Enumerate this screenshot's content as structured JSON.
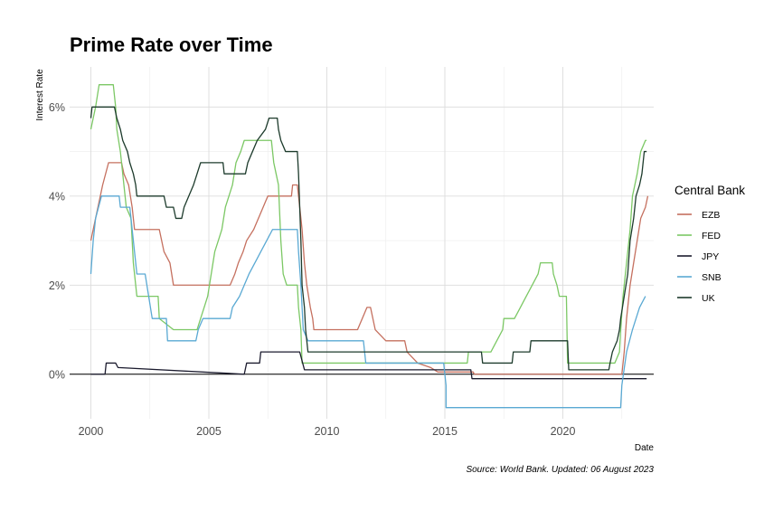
{
  "chart_data": {
    "type": "line",
    "title": "Prime Rate over Time",
    "xlabel": "Date",
    "ylabel": "Interest Rate",
    "caption": "Source: World Bank. Updated: 06 August 2023",
    "xlim": [
      1999.1,
      2023.85
    ],
    "ylim": [
      -1.0,
      6.9
    ],
    "x_ticks": [
      2000,
      2005,
      2010,
      2015,
      2020
    ],
    "x_tick_labels": [
      "2000",
      "2005",
      "2010",
      "2015",
      "2020"
    ],
    "y_ticks": [
      0,
      2,
      4,
      6
    ],
    "y_tick_labels": [
      "0%",
      "2%",
      "4%",
      "6%"
    ],
    "grid": true,
    "legend": {
      "title": "Central Bank",
      "placement": "right"
    },
    "series": [
      {
        "name": "EZB",
        "color": "#c5705f",
        "points": [
          [
            2000.0,
            3.0
          ],
          [
            2000.1,
            3.25
          ],
          [
            2000.2,
            3.5
          ],
          [
            2000.3,
            3.75
          ],
          [
            2000.5,
            4.25
          ],
          [
            2000.75,
            4.75
          ],
          [
            2001.3,
            4.75
          ],
          [
            2001.4,
            4.5
          ],
          [
            2001.6,
            4.25
          ],
          [
            2001.75,
            3.75
          ],
          [
            2001.85,
            3.25
          ],
          [
            2002.9,
            3.25
          ],
          [
            2003.1,
            2.75
          ],
          [
            2003.35,
            2.5
          ],
          [
            2003.5,
            2.0
          ],
          [
            2005.9,
            2.0
          ],
          [
            2006.1,
            2.25
          ],
          [
            2006.25,
            2.5
          ],
          [
            2006.45,
            2.75
          ],
          [
            2006.6,
            3.0
          ],
          [
            2006.9,
            3.25
          ],
          [
            2007.3,
            3.75
          ],
          [
            2007.5,
            4.0
          ],
          [
            2008.5,
            4.0
          ],
          [
            2008.55,
            4.25
          ],
          [
            2008.75,
            4.25
          ],
          [
            2008.85,
            3.75
          ],
          [
            2008.95,
            3.25
          ],
          [
            2009.05,
            2.5
          ],
          [
            2009.15,
            2.0
          ],
          [
            2009.3,
            1.5
          ],
          [
            2009.4,
            1.25
          ],
          [
            2009.45,
            1.0
          ],
          [
            2011.3,
            1.0
          ],
          [
            2011.5,
            1.25
          ],
          [
            2011.7,
            1.5
          ],
          [
            2011.85,
            1.5
          ],
          [
            2011.95,
            1.25
          ],
          [
            2012.05,
            1.0
          ],
          [
            2012.5,
            0.75
          ],
          [
            2013.3,
            0.75
          ],
          [
            2013.4,
            0.5
          ],
          [
            2013.85,
            0.25
          ],
          [
            2014.4,
            0.15
          ],
          [
            2014.7,
            0.05
          ],
          [
            2016.2,
            0.05
          ],
          [
            2016.25,
            0.0
          ],
          [
            2022.5,
            0.0
          ],
          [
            2022.6,
            0.5
          ],
          [
            2022.7,
            1.25
          ],
          [
            2022.85,
            2.0
          ],
          [
            2023.0,
            2.5
          ],
          [
            2023.15,
            3.0
          ],
          [
            2023.3,
            3.5
          ],
          [
            2023.5,
            3.75
          ],
          [
            2023.6,
            4.0
          ]
        ]
      },
      {
        "name": "FED",
        "color": "#7cc865",
        "points": [
          [
            2000.0,
            5.5
          ],
          [
            2000.1,
            5.75
          ],
          [
            2000.2,
            6.0
          ],
          [
            2000.35,
            6.5
          ],
          [
            2000.95,
            6.5
          ],
          [
            2001.05,
            6.0
          ],
          [
            2001.1,
            5.5
          ],
          [
            2001.25,
            5.0
          ],
          [
            2001.35,
            4.5
          ],
          [
            2001.5,
            3.75
          ],
          [
            2001.7,
            3.5
          ],
          [
            2001.75,
            3.0
          ],
          [
            2001.8,
            2.5
          ],
          [
            2001.9,
            2.0
          ],
          [
            2001.95,
            1.75
          ],
          [
            2002.85,
            1.75
          ],
          [
            2002.9,
            1.25
          ],
          [
            2003.5,
            1.0
          ],
          [
            2004.5,
            1.0
          ],
          [
            2004.65,
            1.25
          ],
          [
            2004.8,
            1.5
          ],
          [
            2004.95,
            1.75
          ],
          [
            2005.1,
            2.25
          ],
          [
            2005.25,
            2.75
          ],
          [
            2005.4,
            3.0
          ],
          [
            2005.55,
            3.25
          ],
          [
            2005.7,
            3.75
          ],
          [
            2005.85,
            4.0
          ],
          [
            2006.0,
            4.25
          ],
          [
            2006.15,
            4.75
          ],
          [
            2006.35,
            5.0
          ],
          [
            2006.5,
            5.25
          ],
          [
            2007.65,
            5.25
          ],
          [
            2007.75,
            4.75
          ],
          [
            2007.85,
            4.5
          ],
          [
            2007.95,
            4.25
          ],
          [
            2008.05,
            3.0
          ],
          [
            2008.15,
            2.25
          ],
          [
            2008.3,
            2.0
          ],
          [
            2008.75,
            2.0
          ],
          [
            2008.8,
            1.5
          ],
          [
            2008.9,
            1.0
          ],
          [
            2008.95,
            0.25
          ],
          [
            2015.95,
            0.25
          ],
          [
            2016.0,
            0.5
          ],
          [
            2016.95,
            0.5
          ],
          [
            2017.2,
            0.75
          ],
          [
            2017.45,
            1.0
          ],
          [
            2017.5,
            1.25
          ],
          [
            2017.95,
            1.25
          ],
          [
            2018.2,
            1.5
          ],
          [
            2018.45,
            1.75
          ],
          [
            2018.7,
            2.0
          ],
          [
            2018.95,
            2.25
          ],
          [
            2019.05,
            2.5
          ],
          [
            2019.55,
            2.5
          ],
          [
            2019.6,
            2.25
          ],
          [
            2019.75,
            2.0
          ],
          [
            2019.85,
            1.75
          ],
          [
            2020.15,
            1.75
          ],
          [
            2020.2,
            0.25
          ],
          [
            2022.2,
            0.25
          ],
          [
            2022.4,
            0.5
          ],
          [
            2022.45,
            1.0
          ],
          [
            2022.55,
            1.75
          ],
          [
            2022.7,
            2.5
          ],
          [
            2022.85,
            3.25
          ],
          [
            2022.95,
            4.0
          ],
          [
            2023.05,
            4.25
          ],
          [
            2023.15,
            4.5
          ],
          [
            2023.3,
            5.0
          ],
          [
            2023.5,
            5.25
          ],
          [
            2023.55,
            5.25
          ]
        ]
      },
      {
        "name": "JPY",
        "color": "#1b1b2e",
        "points": [
          [
            2000.0,
            0.0
          ],
          [
            2000.6,
            0.0
          ],
          [
            2000.65,
            0.25
          ],
          [
            2001.05,
            0.25
          ],
          [
            2001.15,
            0.15
          ],
          [
            2006.5,
            0.0
          ],
          [
            2006.6,
            0.25
          ],
          [
            2007.15,
            0.25
          ],
          [
            2007.2,
            0.5
          ],
          [
            2008.85,
            0.5
          ],
          [
            2008.95,
            0.3
          ],
          [
            2009.05,
            0.1
          ],
          [
            2016.1,
            0.1
          ],
          [
            2016.15,
            -0.1
          ],
          [
            2023.55,
            -0.1
          ]
        ]
      },
      {
        "name": "SNB",
        "color": "#5aa9d3",
        "points": [
          [
            2000.0,
            2.25
          ],
          [
            2000.1,
            3.0
          ],
          [
            2000.2,
            3.5
          ],
          [
            2000.45,
            4.0
          ],
          [
            2001.2,
            4.0
          ],
          [
            2001.25,
            3.75
          ],
          [
            2001.65,
            3.75
          ],
          [
            2001.75,
            3.25
          ],
          [
            2001.85,
            2.75
          ],
          [
            2001.95,
            2.25
          ],
          [
            2002.3,
            2.25
          ],
          [
            2002.45,
            1.75
          ],
          [
            2002.6,
            1.25
          ],
          [
            2003.2,
            1.25
          ],
          [
            2003.25,
            0.75
          ],
          [
            2004.45,
            0.75
          ],
          [
            2004.55,
            1.0
          ],
          [
            2004.75,
            1.25
          ],
          [
            2005.9,
            1.25
          ],
          [
            2006.0,
            1.5
          ],
          [
            2006.3,
            1.75
          ],
          [
            2006.5,
            2.0
          ],
          [
            2006.7,
            2.25
          ],
          [
            2006.95,
            2.5
          ],
          [
            2007.2,
            2.75
          ],
          [
            2007.45,
            3.0
          ],
          [
            2007.7,
            3.25
          ],
          [
            2008.75,
            3.25
          ],
          [
            2008.8,
            2.75
          ],
          [
            2008.9,
            2.0
          ],
          [
            2009.0,
            1.0
          ],
          [
            2009.2,
            0.75
          ],
          [
            2011.55,
            0.75
          ],
          [
            2011.65,
            0.25
          ],
          [
            2014.95,
            0.25
          ],
          [
            2015.05,
            -0.25
          ],
          [
            2015.05,
            -0.75
          ],
          [
            2022.45,
            -0.75
          ],
          [
            2022.5,
            -0.25
          ],
          [
            2022.7,
            0.5
          ],
          [
            2022.95,
            1.0
          ],
          [
            2023.25,
            1.5
          ],
          [
            2023.5,
            1.75
          ]
        ]
      },
      {
        "name": "UK",
        "color": "#1d3b2c",
        "points": [
          [
            2000.0,
            5.75
          ],
          [
            2000.05,
            6.0
          ],
          [
            2001.0,
            6.0
          ],
          [
            2001.1,
            5.75
          ],
          [
            2001.25,
            5.5
          ],
          [
            2001.35,
            5.25
          ],
          [
            2001.55,
            5.0
          ],
          [
            2001.65,
            4.75
          ],
          [
            2001.8,
            4.5
          ],
          [
            2001.9,
            4.25
          ],
          [
            2001.95,
            4.0
          ],
          [
            2003.1,
            4.0
          ],
          [
            2003.2,
            3.75
          ],
          [
            2003.5,
            3.75
          ],
          [
            2003.6,
            3.5
          ],
          [
            2003.85,
            3.5
          ],
          [
            2003.95,
            3.75
          ],
          [
            2004.15,
            4.0
          ],
          [
            2004.35,
            4.25
          ],
          [
            2004.5,
            4.5
          ],
          [
            2004.65,
            4.75
          ],
          [
            2005.6,
            4.75
          ],
          [
            2005.65,
            4.5
          ],
          [
            2006.55,
            4.5
          ],
          [
            2006.65,
            4.75
          ],
          [
            2006.85,
            5.0
          ],
          [
            2007.05,
            5.25
          ],
          [
            2007.4,
            5.5
          ],
          [
            2007.55,
            5.75
          ],
          [
            2007.9,
            5.75
          ],
          [
            2007.95,
            5.5
          ],
          [
            2008.05,
            5.25
          ],
          [
            2008.25,
            5.0
          ],
          [
            2008.75,
            5.0
          ],
          [
            2008.8,
            4.5
          ],
          [
            2008.9,
            3.0
          ],
          [
            2008.95,
            2.0
          ],
          [
            2009.05,
            1.5
          ],
          [
            2009.1,
            1.0
          ],
          [
            2009.2,
            0.5
          ],
          [
            2016.55,
            0.5
          ],
          [
            2016.6,
            0.25
          ],
          [
            2017.85,
            0.25
          ],
          [
            2017.9,
            0.5
          ],
          [
            2018.6,
            0.5
          ],
          [
            2018.65,
            0.75
          ],
          [
            2020.2,
            0.75
          ],
          [
            2020.25,
            0.1
          ],
          [
            2021.95,
            0.1
          ],
          [
            2022.0,
            0.25
          ],
          [
            2022.1,
            0.5
          ],
          [
            2022.3,
            0.75
          ],
          [
            2022.4,
            1.0
          ],
          [
            2022.45,
            1.25
          ],
          [
            2022.6,
            1.75
          ],
          [
            2022.75,
            2.25
          ],
          [
            2022.85,
            3.0
          ],
          [
            2023.0,
            3.5
          ],
          [
            2023.1,
            4.0
          ],
          [
            2023.25,
            4.25
          ],
          [
            2023.35,
            4.5
          ],
          [
            2023.45,
            5.0
          ],
          [
            2023.55,
            5.0
          ]
        ]
      }
    ]
  }
}
